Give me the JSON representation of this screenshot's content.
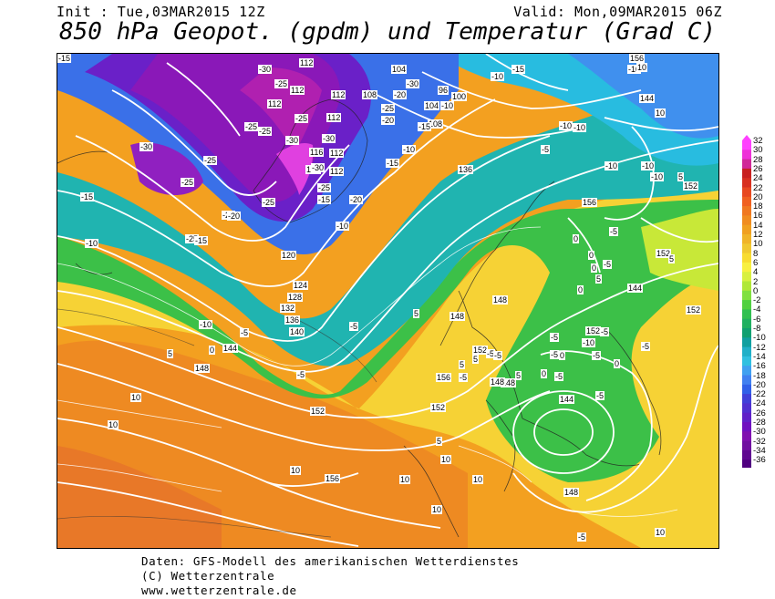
{
  "header": {
    "init": "Init : Tue,03MAR2015 12Z",
    "valid": "Valid: Mon,09MAR2015 06Z",
    "title": "850 hPa Geopot. (gpdm) und Temperatur (Grad C)"
  },
  "footer": {
    "line1": "Daten: GFS-Modell des amerikanischen Wetterdienstes",
    "line2": "(C) Wetterzentrale",
    "line3": "www.wetterzentrale.de"
  },
  "scale": {
    "labels": [
      "32",
      "30",
      "28",
      "26",
      "24",
      "22",
      "20",
      "18",
      "16",
      "14",
      "12",
      "10",
      "8",
      "6",
      "4",
      "2",
      "0",
      "-2",
      "-4",
      "-6",
      "-8",
      "-10",
      "-12",
      "-14",
      "-16",
      "-18",
      "-20",
      "-22",
      "-24",
      "-26",
      "-28",
      "-30",
      "-32",
      "-34",
      "-36"
    ],
    "colors": [
      "#ff40ff",
      "#ee30d8",
      "#d02898",
      "#c82020",
      "#d83020",
      "#e84820",
      "#f06020",
      "#f07820",
      "#f08c20",
      "#f0a020",
      "#f0b428",
      "#f0c830",
      "#f8dc30",
      "#f8f040",
      "#d8f040",
      "#b0e838",
      "#80e040",
      "#50d040",
      "#30c050",
      "#20b060",
      "#10a070",
      "#10a0a0",
      "#20b0c8",
      "#30c0e0",
      "#40a0f0",
      "#4080f0",
      "#3060e8",
      "#4040d8",
      "#5030d0",
      "#6020c8",
      "#7010c0",
      "#8010b0",
      "#7010a0",
      "#600890",
      "#500080"
    ]
  },
  "map_labels": {
    "geopotential": [
      "112",
      "112",
      "112",
      "112",
      "112",
      "116",
      "112",
      "112",
      "108",
      "108",
      "104",
      "104",
      "108",
      "96",
      "100",
      "136",
      "120",
      "124",
      "128",
      "132",
      "136",
      "140",
      "144",
      "148",
      "148",
      "152",
      "148",
      "152",
      "144",
      "156",
      "152",
      "152",
      "148",
      "148",
      "156",
      "152",
      "156",
      "156",
      "144",
      "144",
      "152",
      "152",
      "148",
      "152",
      "156"
    ],
    "temperature": [
      "-30",
      "-25",
      "-30",
      "-25",
      "-25",
      "-25",
      "-30",
      "-30",
      "-25",
      "-25",
      "-20",
      "-25",
      "-25",
      "-30",
      "-25",
      "-15",
      "-20",
      "-15",
      "-10",
      "-20",
      "-30",
      "-25",
      "-20",
      "-15",
      "-10",
      "-10",
      "-5",
      "-10",
      "-5",
      "-5",
      "-5",
      "0",
      "0",
      "5",
      "-10",
      "-5",
      "0",
      "5",
      "5",
      "10",
      "10",
      "10",
      "10",
      "10",
      "10",
      "-15",
      "-10",
      "-20",
      "-15",
      "-10",
      "-10",
      "-15",
      "-10",
      "-10",
      "-5",
      "-5",
      "-5",
      "-5",
      "-5",
      "-5",
      "0",
      "0",
      "-5",
      "5",
      "0",
      "5",
      "-5",
      "-5",
      "0",
      "5",
      "10",
      "-10",
      "-10",
      "-10",
      "-5",
      "-5",
      "0",
      "5",
      "5",
      "10",
      "10",
      "10",
      "-5",
      "10",
      "5",
      "-15",
      "-15"
    ]
  }
}
